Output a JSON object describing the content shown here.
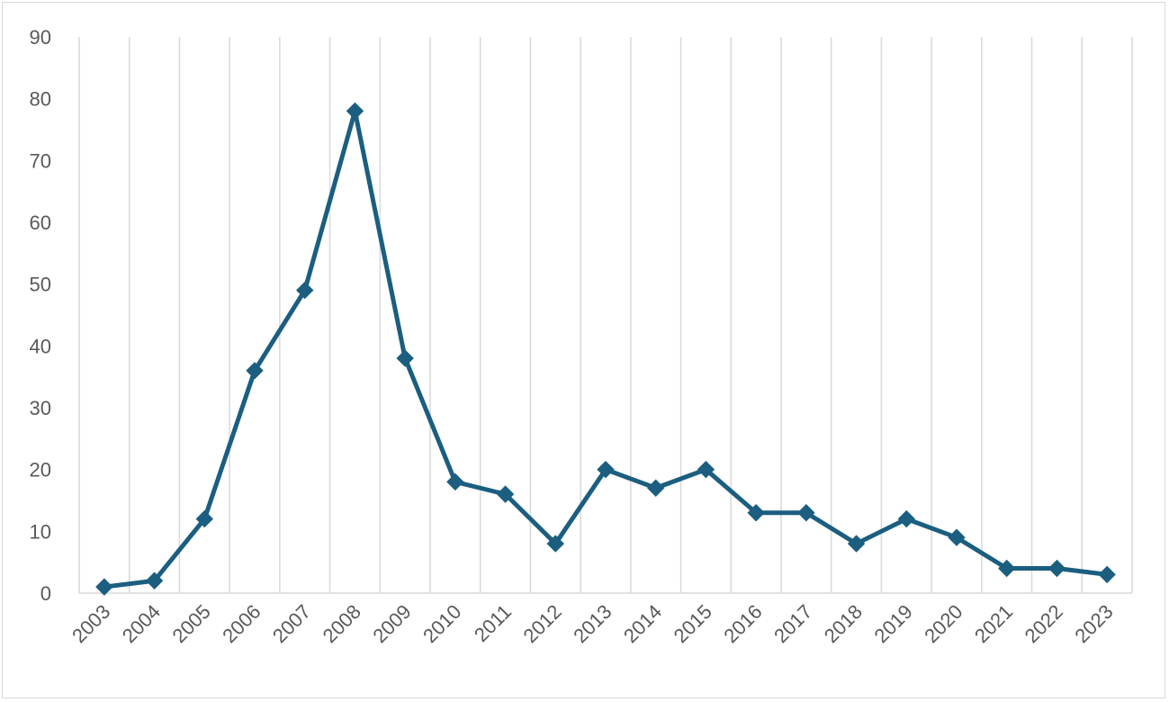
{
  "chart_data": {
    "type": "line",
    "title": "",
    "xlabel": "",
    "ylabel": "",
    "categories": [
      "2003",
      "2004",
      "2005",
      "2006",
      "2007",
      "2008",
      "2009",
      "2010",
      "2011",
      "2012",
      "2013",
      "2014",
      "2015",
      "2016",
      "2017",
      "2018",
      "2019",
      "2020",
      "2021",
      "2022",
      "2023"
    ],
    "series": [
      {
        "values": [
          1,
          2,
          12,
          36,
          49,
          78,
          38,
          18,
          16,
          8,
          20,
          17,
          20,
          13,
          13,
          8,
          12,
          9,
          4,
          4,
          3
        ]
      }
    ],
    "ylim": [
      0,
      90
    ],
    "yticks": [
      0,
      10,
      20,
      30,
      40,
      50,
      60,
      70,
      80,
      90
    ],
    "grid": "vertical",
    "legend": "none",
    "marker": "diamond",
    "colors": {
      "line": "#1b5e80",
      "grid": "#d9d9d9",
      "axis": "#d9d9d9",
      "text": "#595959"
    }
  }
}
